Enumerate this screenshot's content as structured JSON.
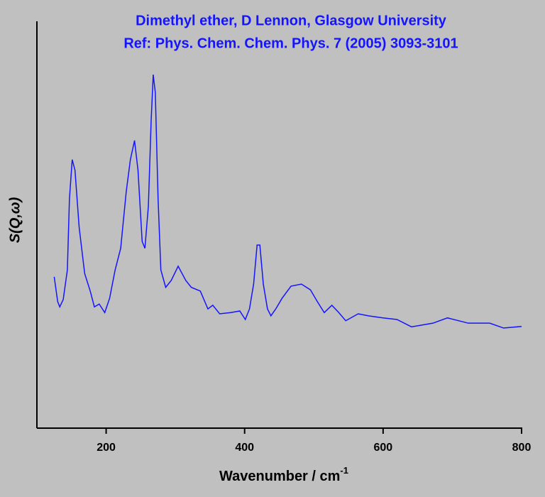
{
  "chart_data": {
    "type": "line",
    "title": [
      "Dimethyl ether, D Lennon, Glasgow University",
      "Ref: Phys. Chem. Chem. Phys. 7 (2005) 3093-3101"
    ],
    "x_label": {
      "text": "Wavenumber / cm",
      "superscript": "-1"
    },
    "y_label": "S(Q,ω)",
    "xlim": [
      100,
      800
    ],
    "xticks": [
      200,
      400,
      600,
      800
    ],
    "ylim": [
      0,
      100
    ],
    "series": [
      {
        "color": "#1414ff",
        "x": [
          125,
          130,
          133,
          138,
          144,
          147,
          151,
          155,
          161,
          169,
          177,
          183,
          190,
          198,
          205,
          213,
          221,
          229,
          235,
          241,
          246,
          252,
          256,
          261,
          265,
          268,
          271,
          275,
          279,
          286,
          294,
          304,
          315,
          323,
          336,
          347,
          354,
          364,
          380,
          393,
          401,
          407,
          413,
          418,
          422,
          427,
          433,
          438,
          445,
          454,
          467,
          482,
          495,
          505,
          515,
          526,
          536,
          546,
          564,
          579,
          600,
          620,
          641,
          672,
          693,
          723,
          754,
          774,
          800
        ],
        "values": [
          37.2,
          31.1,
          29.8,
          31.6,
          38.9,
          56.4,
          66,
          63.4,
          49.4,
          38,
          33.7,
          29.8,
          30.5,
          28.4,
          31.9,
          38.9,
          44.2,
          58.1,
          66,
          70.7,
          63.4,
          45.9,
          44.2,
          54.6,
          75.6,
          86.9,
          82.5,
          56.4,
          38.9,
          34.6,
          36.3,
          39.8,
          36.3,
          34.6,
          33.7,
          29.3,
          30.2,
          28.1,
          28.4,
          28.8,
          26.7,
          29.3,
          35.4,
          45,
          45,
          35.4,
          29.3,
          27.6,
          29.3,
          31.9,
          34.9,
          35.4,
          34,
          31.1,
          28.4,
          30.2,
          28.4,
          26.4,
          28.1,
          27.6,
          27.1,
          26.7,
          24.9,
          25.8,
          27.1,
          25.8,
          25.8,
          24.6,
          25
        ]
      }
    ]
  }
}
